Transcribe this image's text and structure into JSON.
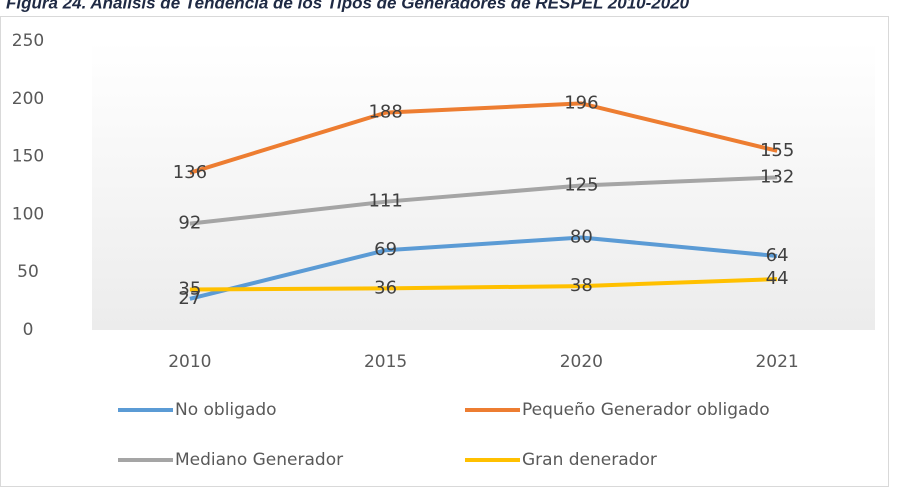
{
  "chart_data": {
    "type": "line",
    "title": "Figura 24. Análisis de Tendencia de los Tipos de Generadores de RESPEL 2010-2020",
    "categories": [
      "2010",
      "2015",
      "2020",
      "2021"
    ],
    "series": [
      {
        "name": "No obligado",
        "color": "#5b9bd5",
        "values": [
          27,
          69,
          80,
          64
        ]
      },
      {
        "name": "Pequeño Generador obligado",
        "color": "#ed7d31",
        "values": [
          136,
          188,
          196,
          155
        ]
      },
      {
        "name": "Mediano Generador",
        "color": "#a5a5a5",
        "values": [
          92,
          111,
          125,
          132
        ]
      },
      {
        "name": "Gran denerador",
        "color": "#ffc000",
        "values": [
          35,
          36,
          38,
          44
        ]
      }
    ],
    "ylim": [
      0,
      250
    ],
    "yticks": [
      0,
      50,
      100,
      150,
      200,
      250
    ],
    "legend": "bottom"
  }
}
